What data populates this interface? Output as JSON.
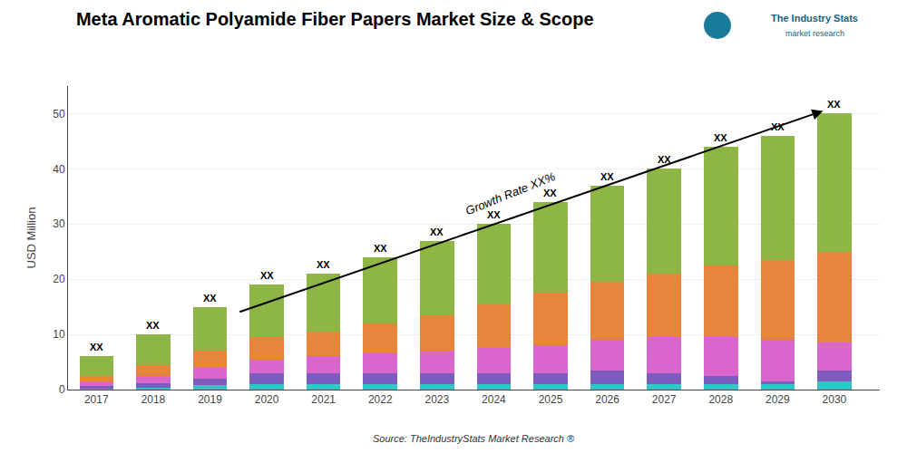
{
  "chart_data": {
    "type": "bar",
    "stacked": true,
    "title": "Meta Aromatic Polyamide Fiber Papers Market Size & Scope",
    "ylabel": "USD Million",
    "x": [
      2017,
      2018,
      2019,
      2020,
      2021,
      2022,
      2023,
      2024,
      2025,
      2026,
      2027,
      2028,
      2029,
      2030
    ],
    "xlim": [
      2016.5,
      2030.8
    ],
    "xticks": [
      2017,
      2018,
      2019,
      2020,
      2021,
      2022,
      2023,
      2024,
      2025,
      2026,
      2027,
      2028,
      2029,
      2030
    ],
    "ylim": [
      0,
      55
    ],
    "yticks": [
      0,
      10,
      20,
      30,
      40,
      50
    ],
    "grid": "y",
    "series": [
      {
        "color": "#36c5c5",
        "values": [
          0.2,
          0.4,
          0.8,
          1.0,
          1.0,
          1.0,
          1.0,
          1.0,
          1.0,
          1.0,
          1.0,
          1.0,
          1.0,
          1.5
        ]
      },
      {
        "color": "#7c5cbf",
        "values": [
          0.4,
          0.8,
          1.2,
          2.0,
          2.0,
          2.0,
          2.0,
          2.0,
          2.0,
          2.5,
          2.0,
          1.5,
          0.5,
          2.0
        ]
      },
      {
        "color": "#d966cc",
        "values": [
          0.7,
          1.3,
          2.0,
          2.5,
          3.0,
          3.5,
          4.0,
          4.5,
          5.0,
          5.5,
          6.5,
          7.0,
          7.5,
          5.0
        ]
      },
      {
        "color": "#e8853d",
        "values": [
          1.2,
          2.0,
          3.0,
          4.0,
          4.5,
          5.5,
          6.5,
          8.0,
          9.5,
          10.5,
          11.5,
          13.0,
          14.5,
          16.5
        ]
      },
      {
        "color": "#8db645",
        "values": [
          3.5,
          5.5,
          8.0,
          9.5,
          10.5,
          12.0,
          13.5,
          14.5,
          16.5,
          17.5,
          19.0,
          21.5,
          22.5,
          25.0
        ]
      }
    ],
    "annotations": [
      {
        "text": "XX",
        "x": 2017,
        "y": 6
      },
      {
        "text": "XX",
        "x": 2018,
        "y": 10
      },
      {
        "text": "XX",
        "x": 2019,
        "y": 15
      },
      {
        "text": "XX",
        "x": 2020,
        "y": 19
      },
      {
        "text": "XX",
        "x": 2021,
        "y": 21
      },
      {
        "text": "XX",
        "x": 2022,
        "y": 24
      },
      {
        "text": "XX",
        "x": 2023,
        "y": 27
      },
      {
        "text": "XX",
        "x": 2024,
        "y": 30
      },
      {
        "text": "XX",
        "x": 2025,
        "y": 34
      },
      {
        "text": "XX",
        "x": 2026,
        "y": 37
      },
      {
        "text": "XX",
        "x": 2027,
        "y": 40
      },
      {
        "text": "XX",
        "x": 2028,
        "y": 44
      },
      {
        "text": "XX",
        "x": 2029,
        "y": 46
      },
      {
        "text": "XX",
        "x": 2030,
        "y": 50
      },
      {
        "text": "Growth Rate XX%",
        "arrow_from": [
          2019.5,
          14.0
        ],
        "arrow_to": [
          2029.8,
          50.5
        ]
      }
    ],
    "source": "Source: TheIndustryStats Market Research ®",
    "logo": [
      "The Industry Stats",
      "market research"
    ]
  }
}
